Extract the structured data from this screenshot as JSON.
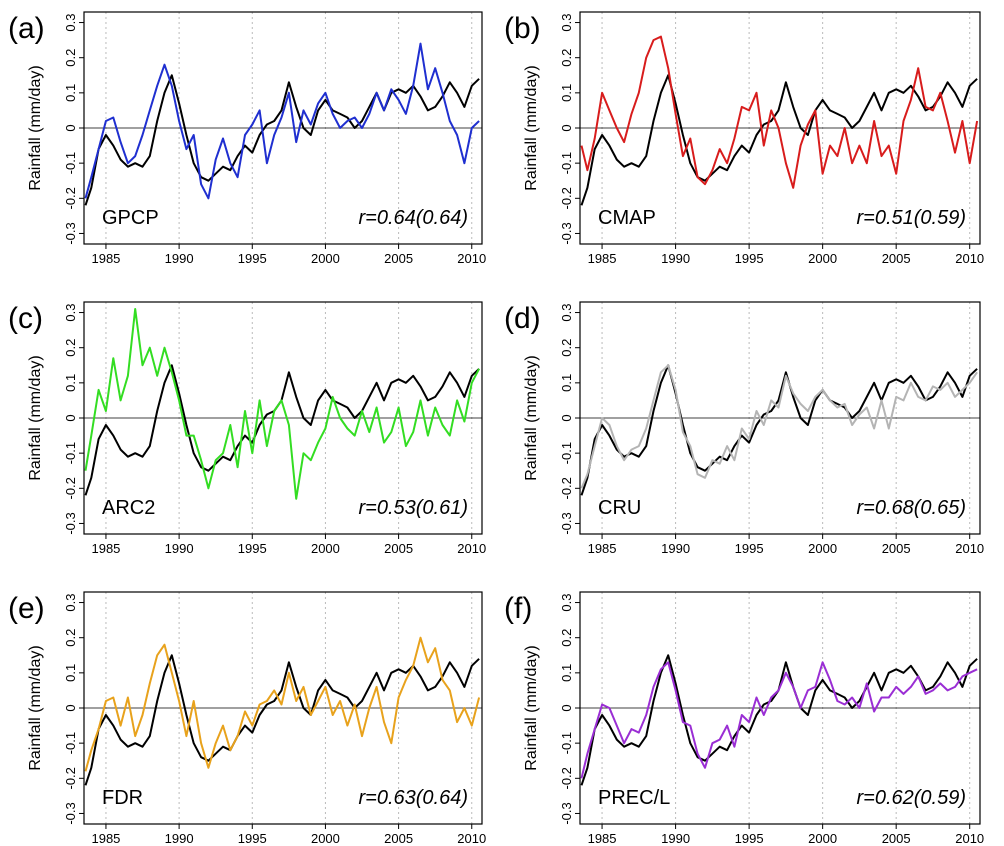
{
  "figure": {
    "y_axis_label": "Rainfall (mm/day)",
    "x_ticks": [
      1985,
      1990,
      1995,
      2000,
      2005,
      2010
    ],
    "x_tick_labels": [
      "1985",
      "1990",
      "1995",
      "2000",
      "2005",
      "2010"
    ],
    "y_ticks": [
      -0.3,
      -0.2,
      -0.1,
      0,
      0.1,
      0.2,
      0.3
    ],
    "y_tick_labels": [
      "-0.3",
      "-0.2",
      "-0.1",
      "0",
      "0.1",
      "0.2",
      "0.3"
    ],
    "reference_series_color": "#000000",
    "grid_color": "#bbbbbb"
  },
  "panels": [
    {
      "letter": "(a)",
      "name": "GPCP",
      "r_text": "r=0.64(0.64)",
      "color": "#1f2fd0",
      "show_ylabel": true
    },
    {
      "letter": "(b)",
      "name": "CMAP",
      "r_text": "r=0.51(0.59)",
      "color": "#d81c1c",
      "show_ylabel": true
    },
    {
      "letter": "(c)",
      "name": "ARC2",
      "r_text": "r=0.53(0.61)",
      "color": "#33dd22",
      "show_ylabel": true
    },
    {
      "letter": "(d)",
      "name": "CRU",
      "r_text": "r=0.68(0.65)",
      "color": "#b4b4b4",
      "show_ylabel": true
    },
    {
      "letter": "(e)",
      "name": "FDR",
      "r_text": "r=0.63(0.64)",
      "color": "#e8a21c",
      "show_ylabel": true
    },
    {
      "letter": "(f)",
      "name": "PREC/L",
      "r_text": "r=0.62(0.59)",
      "color": "#9a2ed4",
      "show_ylabel": true
    }
  ],
  "chart_data": {
    "type": "line",
    "xlim": [
      1983.5,
      2010.7
    ],
    "ylim": [
      -0.33,
      0.33
    ],
    "grid": "vertical dashed at x ticks",
    "reference": {
      "x": [
        1983.6,
        1984.0,
        1984.5,
        1985.0,
        1985.5,
        1986.0,
        1986.5,
        1987.0,
        1987.5,
        1988.0,
        1988.5,
        1989.0,
        1989.5,
        1990.0,
        1990.5,
        1991.0,
        1991.5,
        1992.0,
        1992.5,
        1993.0,
        1993.5,
        1994.0,
        1994.5,
        1995.0,
        1995.5,
        1996.0,
        1996.5,
        1997.0,
        1997.5,
        1998.0,
        1998.5,
        1999.0,
        1999.5,
        2000.0,
        2000.5,
        2001.0,
        2001.5,
        2002.0,
        2002.5,
        2003.0,
        2003.5,
        2004.0,
        2004.5,
        2005.0,
        2005.5,
        2006.0,
        2006.5,
        2007.0,
        2007.5,
        2008.0,
        2008.5,
        2009.0,
        2009.5,
        2010.0,
        2010.5
      ],
      "y": [
        -0.22,
        -0.17,
        -0.06,
        -0.02,
        -0.05,
        -0.09,
        -0.11,
        -0.1,
        -0.11,
        -0.08,
        0.02,
        0.1,
        0.15,
        0.07,
        -0.02,
        -0.1,
        -0.14,
        -0.15,
        -0.13,
        -0.11,
        -0.12,
        -0.08,
        -0.05,
        -0.07,
        -0.02,
        0.01,
        0.02,
        0.05,
        0.13,
        0.06,
        0.0,
        -0.02,
        0.05,
        0.08,
        0.05,
        0.04,
        0.03,
        0.0,
        0.02,
        0.06,
        0.1,
        0.05,
        0.1,
        0.11,
        0.1,
        0.12,
        0.09,
        0.05,
        0.06,
        0.09,
        0.13,
        0.1,
        0.06,
        0.12,
        0.14
      ]
    },
    "series": [
      {
        "name": "GPCP",
        "x": [
          1983.6,
          1984.0,
          1984.5,
          1985.0,
          1985.5,
          1986.0,
          1986.5,
          1987.0,
          1987.5,
          1988.0,
          1988.5,
          1989.0,
          1989.5,
          1990.0,
          1990.5,
          1991.0,
          1991.5,
          1992.0,
          1992.5,
          1993.0,
          1993.5,
          1994.0,
          1994.5,
          1995.0,
          1995.5,
          1996.0,
          1996.5,
          1997.0,
          1997.5,
          1998.0,
          1998.5,
          1999.0,
          1999.5,
          2000.0,
          2000.5,
          2001.0,
          2001.5,
          2002.0,
          2002.5,
          2003.0,
          2003.5,
          2004.0,
          2004.5,
          2005.0,
          2005.5,
          2006.0,
          2006.5,
          2007.0,
          2007.5,
          2008.0,
          2008.5,
          2009.0,
          2009.5,
          2010.0,
          2010.5
        ],
        "y": [
          -0.2,
          -0.14,
          -0.06,
          0.02,
          0.03,
          -0.04,
          -0.1,
          -0.08,
          -0.02,
          0.05,
          0.12,
          0.18,
          0.12,
          0.02,
          -0.06,
          -0.02,
          -0.16,
          -0.2,
          -0.09,
          -0.03,
          -0.1,
          -0.14,
          -0.02,
          0.01,
          0.05,
          -0.1,
          -0.02,
          0.03,
          0.1,
          -0.04,
          0.05,
          0.01,
          0.07,
          0.1,
          0.04,
          0.0,
          0.02,
          0.03,
          0.0,
          0.04,
          0.1,
          0.05,
          0.11,
          0.08,
          0.04,
          0.12,
          0.24,
          0.11,
          0.17,
          0.1,
          0.02,
          -0.02,
          -0.1,
          0.0,
          0.02
        ]
      },
      {
        "name": "CMAP",
        "x": [
          1983.6,
          1984.0,
          1984.5,
          1985.0,
          1985.5,
          1986.0,
          1986.5,
          1987.0,
          1987.5,
          1988.0,
          1988.5,
          1989.0,
          1989.5,
          1990.0,
          1990.5,
          1991.0,
          1991.5,
          1992.0,
          1992.5,
          1993.0,
          1993.5,
          1994.0,
          1994.5,
          1995.0,
          1995.5,
          1996.0,
          1996.5,
          1997.0,
          1997.5,
          1998.0,
          1998.5,
          1999.0,
          1999.5,
          2000.0,
          2000.5,
          2001.0,
          2001.5,
          2002.0,
          2002.5,
          2003.0,
          2003.5,
          2004.0,
          2004.5,
          2005.0,
          2005.5,
          2006.0,
          2006.5,
          2007.0,
          2007.5,
          2008.0,
          2008.5,
          2009.0,
          2009.5,
          2010.0,
          2010.5
        ],
        "y": [
          -0.05,
          -0.12,
          -0.03,
          0.1,
          0.05,
          0.0,
          -0.04,
          0.04,
          0.1,
          0.2,
          0.25,
          0.26,
          0.17,
          0.04,
          -0.08,
          -0.03,
          -0.14,
          -0.16,
          -0.12,
          -0.06,
          -0.1,
          -0.03,
          0.06,
          0.05,
          0.1,
          -0.05,
          0.05,
          0.0,
          -0.1,
          -0.17,
          -0.05,
          0.01,
          0.05,
          -0.13,
          -0.05,
          -0.08,
          0.0,
          -0.1,
          -0.05,
          -0.1,
          0.02,
          -0.08,
          -0.05,
          -0.13,
          0.02,
          0.08,
          0.17,
          0.06,
          0.05,
          0.1,
          0.02,
          -0.07,
          0.02,
          -0.1,
          0.02
        ]
      },
      {
        "name": "ARC2",
        "x": [
          1983.6,
          1984.0,
          1984.5,
          1985.0,
          1985.5,
          1986.0,
          1986.5,
          1987.0,
          1987.5,
          1988.0,
          1988.5,
          1989.0,
          1989.5,
          1990.0,
          1990.5,
          1991.0,
          1991.5,
          1992.0,
          1992.5,
          1993.0,
          1993.5,
          1994.0,
          1994.5,
          1995.0,
          1995.5,
          1996.0,
          1996.5,
          1997.0,
          1997.5,
          1998.0,
          1998.5,
          1999.0,
          1999.5,
          2000.0,
          2000.5,
          2001.0,
          2001.5,
          2002.0,
          2002.5,
          2003.0,
          2003.5,
          2004.0,
          2004.5,
          2005.0,
          2005.5,
          2006.0,
          2006.5,
          2007.0,
          2007.5,
          2008.0,
          2008.5,
          2009.0,
          2009.5,
          2010.0,
          2010.5
        ],
        "y": [
          -0.15,
          -0.05,
          0.08,
          0.02,
          0.17,
          0.05,
          0.12,
          0.31,
          0.15,
          0.2,
          0.12,
          0.2,
          0.13,
          0.05,
          -0.05,
          -0.05,
          -0.12,
          -0.2,
          -0.12,
          -0.1,
          -0.02,
          -0.14,
          0.02,
          -0.1,
          0.05,
          -0.08,
          0.02,
          0.05,
          -0.02,
          -0.23,
          -0.1,
          -0.12,
          -0.07,
          -0.03,
          0.06,
          0.0,
          -0.03,
          -0.05,
          0.02,
          -0.04,
          0.03,
          -0.07,
          -0.04,
          0.03,
          -0.08,
          -0.04,
          0.05,
          -0.05,
          0.03,
          -0.02,
          -0.05,
          0.05,
          -0.01,
          0.1,
          0.14
        ]
      },
      {
        "name": "CRU",
        "x": [
          1983.6,
          1984.0,
          1984.5,
          1985.0,
          1985.5,
          1986.0,
          1986.5,
          1987.0,
          1987.5,
          1988.0,
          1988.5,
          1989.0,
          1989.5,
          1990.0,
          1990.5,
          1991.0,
          1991.5,
          1992.0,
          1992.5,
          1993.0,
          1993.5,
          1994.0,
          1994.5,
          1995.0,
          1995.5,
          1996.0,
          1996.5,
          1997.0,
          1997.5,
          1998.0,
          1998.5,
          1999.0,
          1999.5,
          2000.0,
          2000.5,
          2001.0,
          2001.5,
          2002.0,
          2002.5,
          2003.0,
          2003.5,
          2004.0,
          2004.5,
          2005.0,
          2005.5,
          2006.0,
          2006.5,
          2007.0,
          2007.5,
          2008.0,
          2008.5,
          2009.0,
          2009.5,
          2010.0,
          2010.5
        ],
        "y": [
          -0.2,
          -0.16,
          -0.08,
          0.0,
          -0.02,
          -0.08,
          -0.12,
          -0.09,
          -0.08,
          -0.03,
          0.05,
          0.13,
          0.15,
          0.08,
          -0.04,
          -0.08,
          -0.16,
          -0.17,
          -0.12,
          -0.13,
          -0.08,
          -0.12,
          -0.03,
          -0.06,
          0.02,
          -0.02,
          0.05,
          0.03,
          0.12,
          0.07,
          0.04,
          0.02,
          0.06,
          0.08,
          0.05,
          0.03,
          0.04,
          -0.02,
          0.01,
          0.03,
          -0.03,
          0.05,
          -0.03,
          0.06,
          0.05,
          0.1,
          0.06,
          0.05,
          0.09,
          0.08,
          0.1,
          0.06,
          0.08,
          0.1,
          0.13
        ]
      },
      {
        "name": "FDR",
        "x": [
          1983.6,
          1984.0,
          1984.5,
          1985.0,
          1985.5,
          1986.0,
          1986.5,
          1987.0,
          1987.5,
          1988.0,
          1988.5,
          1989.0,
          1989.5,
          1990.0,
          1990.5,
          1991.0,
          1991.5,
          1992.0,
          1992.5,
          1993.0,
          1993.5,
          1994.0,
          1994.5,
          1995.0,
          1995.5,
          1996.0,
          1996.5,
          1997.0,
          1997.5,
          1998.0,
          1998.5,
          1999.0,
          1999.5,
          2000.0,
          2000.5,
          2001.0,
          2001.5,
          2002.0,
          2002.5,
          2003.0,
          2003.5,
          2004.0,
          2004.5,
          2005.0,
          2005.5,
          2006.0,
          2006.5,
          2007.0,
          2007.5,
          2008.0,
          2008.5,
          2009.0,
          2009.5,
          2010.0,
          2010.5
        ],
        "y": [
          -0.18,
          -0.12,
          -0.06,
          0.02,
          0.03,
          -0.05,
          0.03,
          -0.08,
          -0.02,
          0.07,
          0.15,
          0.18,
          0.1,
          0.02,
          -0.08,
          0.02,
          -0.1,
          -0.17,
          -0.1,
          -0.05,
          -0.12,
          -0.08,
          -0.01,
          -0.05,
          0.01,
          0.02,
          0.05,
          0.01,
          0.1,
          0.02,
          0.06,
          -0.02,
          0.02,
          0.06,
          -0.02,
          0.02,
          -0.05,
          0.01,
          -0.08,
          0.0,
          0.06,
          -0.04,
          -0.1,
          0.03,
          0.08,
          0.12,
          0.2,
          0.13,
          0.17,
          0.08,
          0.05,
          -0.04,
          0.0,
          -0.05,
          0.03
        ]
      },
      {
        "name": "PREC/L",
        "x": [
          1983.6,
          1984.0,
          1984.5,
          1985.0,
          1985.5,
          1986.0,
          1986.5,
          1987.0,
          1987.5,
          1988.0,
          1988.5,
          1989.0,
          1989.5,
          1990.0,
          1990.5,
          1991.0,
          1991.5,
          1992.0,
          1992.5,
          1993.0,
          1993.5,
          1994.0,
          1994.5,
          1995.0,
          1995.5,
          1996.0,
          1996.5,
          1997.0,
          1997.5,
          1998.0,
          1998.5,
          1999.0,
          1999.5,
          2000.0,
          2000.5,
          2001.0,
          2001.5,
          2002.0,
          2002.5,
          2003.0,
          2003.5,
          2004.0,
          2004.5,
          2005.0,
          2005.5,
          2006.0,
          2006.5,
          2007.0,
          2007.5,
          2008.0,
          2008.5,
          2009.0,
          2009.5,
          2010.0,
          2010.5
        ],
        "y": [
          -0.2,
          -0.13,
          -0.06,
          0.01,
          0.0,
          -0.05,
          -0.1,
          -0.06,
          -0.07,
          -0.02,
          0.06,
          0.11,
          0.13,
          0.05,
          -0.04,
          -0.05,
          -0.13,
          -0.17,
          -0.1,
          -0.09,
          -0.05,
          -0.11,
          -0.02,
          -0.04,
          0.03,
          -0.02,
          0.03,
          0.05,
          0.1,
          0.06,
          0.0,
          0.05,
          0.06,
          0.13,
          0.08,
          0.02,
          0.01,
          0.03,
          0.0,
          0.07,
          -0.01,
          0.03,
          0.03,
          0.06,
          0.04,
          0.06,
          0.09,
          0.04,
          0.05,
          0.07,
          0.05,
          0.06,
          0.09,
          0.1,
          0.11
        ]
      }
    ]
  }
}
